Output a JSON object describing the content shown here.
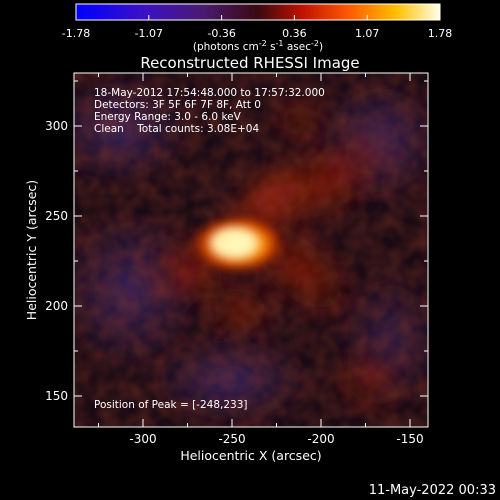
{
  "colorbar": {
    "tick_labels": [
      "-1.78",
      "-1.07",
      "-0.36",
      "0.36",
      "1.07",
      "1.78"
    ],
    "unit_base": "(photons cm",
    "unit_exp1": "-2",
    "unit_mid1": " s",
    "unit_exp2": "-1",
    "unit_mid2": " asec",
    "unit_exp3": "-2",
    "unit_end": ")"
  },
  "title": "Reconstructed RHESSI Image",
  "info_lines": [
    "18-May-2012 17:54:48.000 to 17:57:32.000",
    "Detectors: 3F 5F 6F 7F 8F, Att 0",
    "Energy Range: 3.0 - 6.0 keV",
    "Clean    Total counts: 3.08E+04"
  ],
  "peak_label": "Position of Peak = [-248,233]",
  "x_axis": {
    "label": "Heliocentric X (arcsec)",
    "ticks": [
      "-300",
      "-250",
      "-200",
      "-150"
    ]
  },
  "y_axis": {
    "label": "Heliocentric Y (arcsec)",
    "ticks": [
      "300",
      "250",
      "200",
      "150"
    ]
  },
  "footer_timestamp": "11-May-2022 00:33",
  "colors": {
    "background": "#000000",
    "axes": "#ffffff",
    "palette": "hot"
  }
}
